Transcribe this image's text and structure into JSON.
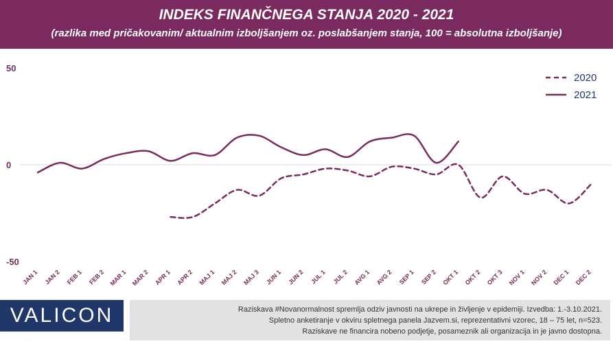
{
  "header": {
    "title": "INDEKS FINANČNEGA STANJA 2020 - 2021",
    "subtitle": "(razlika med pričakovanim/ aktualnim izboljšanjem oz. poslabšanjem stanja, 100 = absolutna izboljšanje)"
  },
  "chart_data": {
    "type": "line",
    "title": "INDEKS FINANČNEGA STANJA 2020 - 2021",
    "xlabel": "",
    "ylabel": "",
    "ylim": [
      -50,
      50
    ],
    "yticks": [
      50,
      0,
      -50
    ],
    "grid": false,
    "legend": "top-right",
    "categories": [
      "JAN 1",
      "JAN 2",
      "FEB 1",
      "FEB 2",
      "MAR 1",
      "MAR 2",
      "APR 1",
      "APR 2",
      "MAJ 1",
      "MAJ 2",
      "MAJ 3",
      "JUN 1",
      "JUN 2",
      "JUL 1",
      "JUL 2",
      "AVG 1",
      "AVG 2",
      "SEP 1",
      "SEP 2",
      "OKT 1",
      "OKT 2",
      "OKT 3",
      "NOV 1",
      "NOV 2",
      "DEC 1",
      "DEC 2"
    ],
    "series": [
      {
        "name": "2020",
        "style": "dashed",
        "color": "#7a2a5e",
        "values": [
          null,
          null,
          null,
          null,
          null,
          null,
          -27,
          -27,
          -20,
          -13,
          -16,
          -7,
          -5,
          -2,
          -3,
          -6,
          -1,
          -2,
          -5,
          0,
          -17,
          -6,
          -15,
          -13,
          -20,
          -10
        ]
      },
      {
        "name": "2021",
        "style": "solid",
        "color": "#7a2a5e",
        "values": [
          -4,
          1,
          -2,
          3,
          6,
          7,
          2,
          6,
          5,
          14,
          15,
          9,
          5,
          8,
          4,
          12,
          14,
          15,
          1,
          12,
          null,
          null,
          null,
          null,
          null,
          null
        ]
      }
    ]
  },
  "footer": {
    "logo": "VALICON",
    "note_lines": [
      "Raziskava #Novanormalnost spremlja odziv javnosti na ukrepe in življenje v epidemiji. Izvedba: 1.-3.10.2021.",
      "Spletno anketiranje v okviru spletnega panela Jazvem.si, reprezentativni vzorec, 18 – 75 let, n=523.",
      "Raziskave ne financira nobeno podjetje, posameznik ali organizacija in je javno dostopna."
    ]
  }
}
